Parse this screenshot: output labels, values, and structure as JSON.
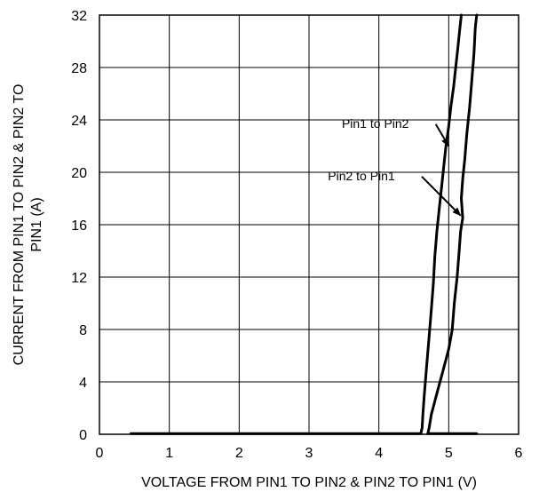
{
  "chart_data": {
    "type": "line",
    "xlabel": "VOLTAGE FROM PIN1 TO PIN2 & PIN2 TO PIN1 (V)",
    "ylabel_line1": "CURRENT FROM PIN1 TO PIN2 & PIN2 TO",
    "ylabel_line2": "PIN1 (A)",
    "xlim": [
      0,
      6
    ],
    "ylim": [
      0,
      32
    ],
    "xticks": [
      0,
      1,
      2,
      3,
      4,
      5,
      6
    ],
    "yticks": [
      0,
      4,
      8,
      12,
      16,
      20,
      24,
      28,
      32
    ],
    "grid": true,
    "legend": "none",
    "line_color": "#000000",
    "series": [
      {
        "name": "Pin1 to Pin2",
        "x": [
          0.45,
          4.0,
          4.6,
          4.62,
          4.63,
          4.65,
          4.68,
          4.72,
          4.75,
          4.78,
          4.8,
          4.83,
          4.87,
          4.9,
          4.93,
          4.96,
          5.0,
          5.03,
          5.07,
          5.1,
          5.13,
          5.15,
          5.17,
          5.18
        ],
        "y": [
          0.05,
          0.05,
          0.05,
          0.5,
          1.5,
          3.0,
          5.0,
          7.5,
          9.5,
          11.5,
          13.5,
          15.5,
          17.5,
          19.0,
          20.5,
          22.0,
          23.5,
          25.0,
          26.5,
          28.0,
          29.5,
          30.5,
          31.5,
          32.0
        ]
      },
      {
        "name": "Pin2 to Pin1",
        "x": [
          5.4,
          4.7,
          4.72,
          4.75,
          4.8,
          4.85,
          4.9,
          4.95,
          5.0,
          5.05,
          5.08,
          5.12,
          5.15,
          5.17,
          5.2,
          5.18,
          5.2,
          5.23,
          5.26,
          5.3,
          5.33,
          5.36,
          5.38,
          5.4
        ],
        "y": [
          0.05,
          0.05,
          0.5,
          1.5,
          2.5,
          3.5,
          4.5,
          5.5,
          6.5,
          8.0,
          10.0,
          12.0,
          14.0,
          15.5,
          16.5,
          18.0,
          19.5,
          21.0,
          23.0,
          25.0,
          27.0,
          29.0,
          31.0,
          32.0
        ]
      }
    ],
    "annotations": [
      {
        "text": "Pin1 to Pin2",
        "target_x": 5.0,
        "target_y": 22.0,
        "text_x": 3.95,
        "text_y": 23.4
      },
      {
        "text": "Pin2 to Pin1",
        "target_x": 5.17,
        "target_y": 16.7,
        "text_x": 3.75,
        "text_y": 19.4
      }
    ]
  }
}
